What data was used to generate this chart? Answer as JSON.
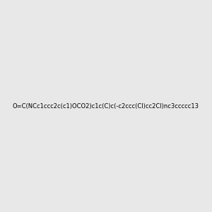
{
  "smiles": "O=C(NCc1ccc2c(c1)OCO2)c1c(C)c(-c2ccc(Cl)cc2Cl)nc3ccccc13",
  "image_size": 300,
  "background_color": "#e8e8e8"
}
